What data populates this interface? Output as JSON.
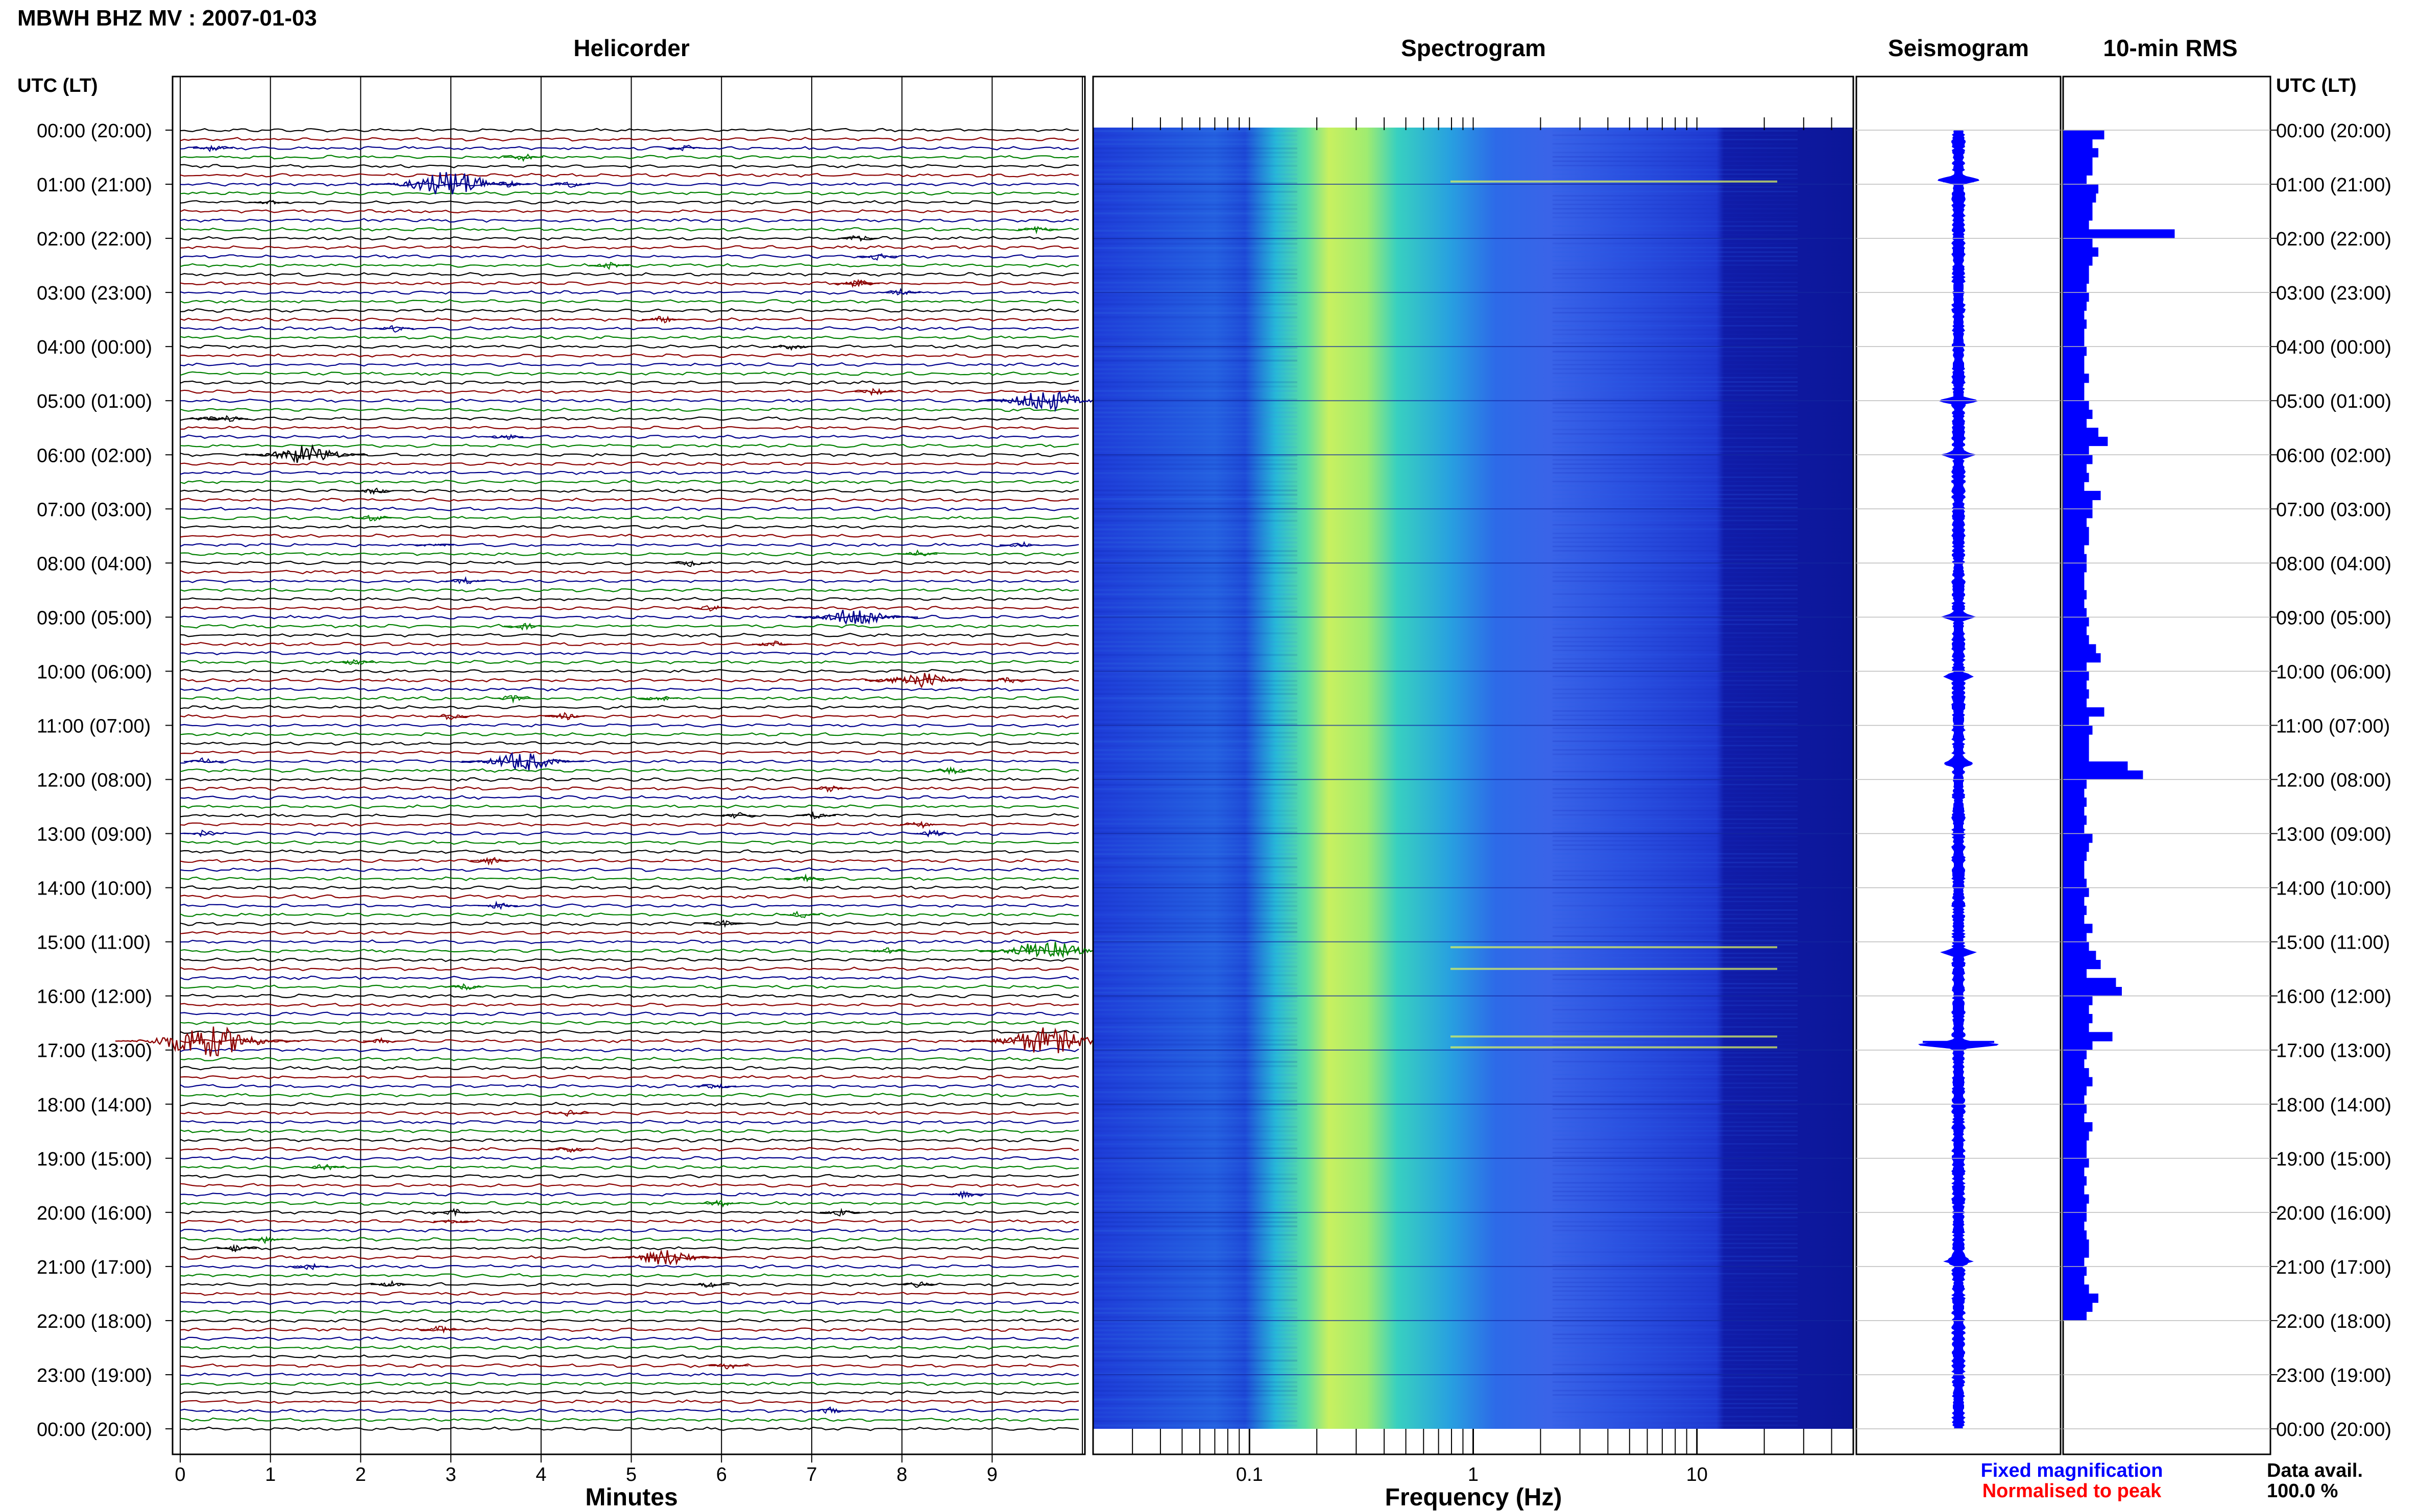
{
  "title": "MBWH BHZ MV : 2007-01-03",
  "panels": {
    "helicorder": "Helicorder",
    "spectrogram": "Spectrogram",
    "seismogram": "Seismogram",
    "rms": "10-min RMS"
  },
  "axis_header_left": "UTC (LT)",
  "axis_header_right": "UTC (LT)",
  "time_labels": [
    "00:00 (20:00)",
    "01:00 (21:00)",
    "02:00 (22:00)",
    "03:00 (23:00)",
    "04:00 (00:00)",
    "05:00 (01:00)",
    "06:00 (02:00)",
    "07:00 (03:00)",
    "08:00 (04:00)",
    "09:00 (05:00)",
    "10:00 (06:00)",
    "11:00 (07:00)",
    "12:00 (08:00)",
    "13:00 (09:00)",
    "14:00 (10:00)",
    "15:00 (11:00)",
    "16:00 (12:00)",
    "17:00 (13:00)",
    "18:00 (14:00)",
    "19:00 (15:00)",
    "20:00 (16:00)",
    "21:00 (17:00)",
    "22:00 (18:00)",
    "23:00 (19:00)",
    "00:00 (20:00)"
  ],
  "minutes_axis": {
    "label": "Minutes",
    "ticks": [
      "0",
      "1",
      "2",
      "3",
      "4",
      "5",
      "6",
      "7",
      "8",
      "9"
    ]
  },
  "frequency_axis": {
    "label": "Frequency (Hz)",
    "ticks": [
      "0.1",
      "1",
      "10"
    ]
  },
  "legend": {
    "fixed": "Fixed magnification",
    "normalised": "Normalised to peak",
    "fixed_color": "#0000ff",
    "normalised_color": "#ff0000"
  },
  "data_avail": {
    "label": "Data avail.",
    "value": "100.0 %"
  },
  "colors": {
    "trace_cycle": [
      "#000000",
      "#8b0000",
      "#00008b",
      "#008000"
    ],
    "spectrogram_low": "#1e2fd8",
    "spectrogram_peak": "#d8f060",
    "seismogram": "#0000ff",
    "rms_bar": "#0000ff"
  },
  "chart_data": {
    "type": "heatmap",
    "description_panels": [
      "helicorder",
      "spectrogram",
      "seismogram",
      "rms"
    ],
    "time_range_hours": [
      0,
      24
    ],
    "helicorder_minutes_range": [
      0,
      10
    ],
    "frequency_range_hz": [
      0.02,
      50
    ],
    "frequency_scale": "log",
    "events": [
      {
        "hour": 0.92,
        "minute": 3.0,
        "strength": 0.8
      },
      {
        "hour": 5.0,
        "minute": 9.6,
        "strength": 0.6
      },
      {
        "hour": 6.0,
        "minute": 1.4,
        "strength": 0.5
      },
      {
        "hour": 9.0,
        "minute": 7.5,
        "strength": 0.5
      },
      {
        "hour": 10.1,
        "minute": 8.2,
        "strength": 0.4
      },
      {
        "hour": 11.7,
        "minute": 3.8,
        "strength": 0.5
      },
      {
        "hour": 15.2,
        "minute": 9.6,
        "strength": 0.6
      },
      {
        "hour": 16.9,
        "minute": 0.3,
        "strength": 1.0
      },
      {
        "hour": 16.9,
        "minute": 9.6,
        "strength": 0.8
      },
      {
        "hour": 20.9,
        "minute": 5.4,
        "strength": 0.4
      }
    ],
    "rms_10min": [
      0.35,
      0.25,
      0.3,
      0.25,
      0.25,
      0.2,
      0.3,
      0.28,
      0.25,
      0.25,
      0.22,
      0.95,
      0.25,
      0.3,
      0.25,
      0.22,
      0.22,
      0.2,
      0.22,
      0.2,
      0.18,
      0.2,
      0.18,
      0.18,
      0.2,
      0.18,
      0.18,
      0.22,
      0.18,
      0.18,
      0.22,
      0.25,
      0.2,
      0.3,
      0.38,
      0.22,
      0.25,
      0.2,
      0.22,
      0.18,
      0.32,
      0.25,
      0.25,
      0.2,
      0.22,
      0.22,
      0.18,
      0.2,
      0.2,
      0.18,
      0.18,
      0.2,
      0.18,
      0.2,
      0.22,
      0.2,
      0.22,
      0.28,
      0.32,
      0.2,
      0.22,
      0.2,
      0.22,
      0.2,
      0.35,
      0.22,
      0.25,
      0.22,
      0.22,
      0.22,
      0.55,
      0.68,
      0.2,
      0.18,
      0.2,
      0.18,
      0.2,
      0.18,
      0.25,
      0.22,
      0.2,
      0.18,
      0.18,
      0.2,
      0.22,
      0.18,
      0.2,
      0.18,
      0.25,
      0.2,
      0.22,
      0.28,
      0.32,
      0.2,
      0.45,
      0.5,
      0.25,
      0.22,
      0.25,
      0.22,
      0.42,
      0.25,
      0.2,
      0.18,
      0.22,
      0.25,
      0.2,
      0.18,
      0.2,
      0.18,
      0.25,
      0.22,
      0.2,
      0.2,
      0.22,
      0.18,
      0.2,
      0.18,
      0.22,
      0.2,
      0.2,
      0.18,
      0.2,
      0.22,
      0.22,
      0.18,
      0.2,
      0.18,
      0.22,
      0.3,
      0.25,
      0.2
    ]
  }
}
